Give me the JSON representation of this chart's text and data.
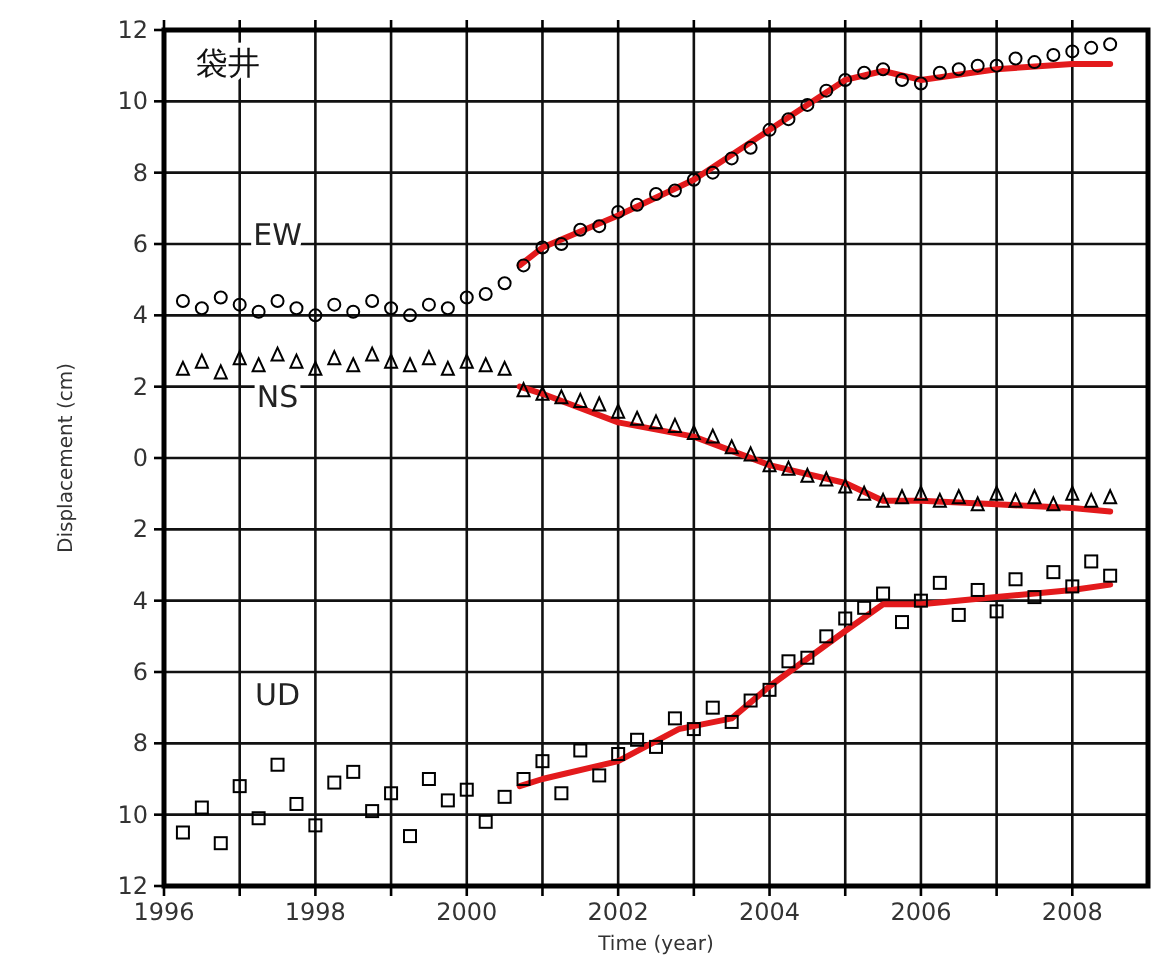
{
  "chart_data": {
    "type": "scatter",
    "title": "袋井",
    "xlabel": "Time (year)",
    "ylabel": "Displacement (cm)",
    "x": [
      1996.25,
      1996.5,
      1996.75,
      1997,
      1997.25,
      1997.5,
      1997.75,
      1998,
      1998.25,
      1998.5,
      1998.75,
      1999,
      1999.25,
      1999.5,
      1999.75,
      2000,
      2000.25,
      2000.5,
      2000.75,
      2001,
      2001.25,
      2001.5,
      2001.75,
      2002,
      2002.25,
      2002.5,
      2002.75,
      2003,
      2003.25,
      2003.5,
      2003.75,
      2004,
      2004.25,
      2004.5,
      2004.75,
      2005,
      2005.25,
      2005.5,
      2005.75,
      2006,
      2006.25,
      2006.5,
      2006.75,
      2007,
      2007.25,
      2007.5,
      2007.75,
      2008,
      2008.25,
      2008.5
    ],
    "series": [
      {
        "name": "EW",
        "color": "#000000",
        "marker": "circle",
        "values": [
          4.4,
          4.2,
          4.5,
          4.3,
          4.1,
          4.4,
          4.2,
          4.0,
          4.3,
          4.1,
          4.4,
          4.2,
          4.0,
          4.3,
          4.2,
          4.5,
          4.6,
          4.9,
          5.4,
          5.9,
          6.0,
          6.4,
          6.5,
          6.9,
          7.1,
          7.4,
          7.5,
          7.8,
          8.0,
          8.4,
          8.7,
          9.2,
          9.5,
          9.9,
          10.3,
          10.6,
          10.8,
          10.9,
          10.6,
          10.5,
          10.8,
          10.9,
          11.0,
          11.0,
          11.2,
          11.1,
          11.3,
          11.4,
          11.5,
          11.6
        ]
      },
      {
        "name": "NS",
        "color": "#000000",
        "marker": "triangle",
        "values": [
          2.5,
          2.7,
          2.4,
          2.8,
          2.6,
          2.9,
          2.7,
          2.5,
          2.8,
          2.6,
          2.9,
          2.7,
          2.6,
          2.8,
          2.5,
          2.7,
          2.6,
          2.5,
          1.9,
          1.8,
          1.7,
          1.6,
          1.5,
          1.3,
          1.1,
          1.0,
          0.9,
          0.7,
          0.6,
          0.3,
          0.1,
          -0.2,
          -0.3,
          -0.5,
          -0.6,
          -0.8,
          -1.0,
          -1.2,
          -1.1,
          -1.0,
          -1.2,
          -1.1,
          -1.3,
          -1.0,
          -1.2,
          -1.1,
          -1.3,
          -1.0,
          -1.2,
          -1.1
        ]
      },
      {
        "name": "UD",
        "color": "#000000",
        "marker": "square",
        "values": [
          -10.5,
          -9.8,
          -10.8,
          -9.2,
          -10.1,
          -8.6,
          -9.7,
          -10.3,
          -9.1,
          -8.8,
          -9.9,
          -9.4,
          -10.6,
          -9.0,
          -9.6,
          -9.3,
          -10.2,
          -9.5,
          -9.0,
          -8.5,
          -9.4,
          -8.2,
          -8.9,
          -8.3,
          -7.9,
          -8.1,
          -7.3,
          -7.6,
          -7.0,
          -7.4,
          -6.8,
          -6.5,
          -5.7,
          -5.6,
          -5.0,
          -4.5,
          -4.2,
          -3.8,
          -4.6,
          -4.0,
          -3.5,
          -4.4,
          -3.7,
          -4.3,
          -3.4,
          -3.9,
          -3.2,
          -3.6,
          -2.9,
          -3.3
        ]
      },
      {
        "type": "line",
        "color": "#e31a1c",
        "marker": "none",
        "x": [
          2000.7,
          2001,
          2002,
          2003,
          2004,
          2005,
          2005.5,
          2006,
          2007,
          2008,
          2008.5
        ],
        "values": [
          5.4,
          5.9,
          6.8,
          7.8,
          9.2,
          10.6,
          10.85,
          10.6,
          10.9,
          11.05,
          11.05
        ]
      },
      {
        "type": "line",
        "color": "#e31a1c",
        "marker": "none",
        "x": [
          2000.7,
          2001,
          2002,
          2003,
          2004,
          2005,
          2005.5,
          2006,
          2007,
          2008,
          2008.5
        ],
        "values": [
          2.0,
          1.8,
          1.0,
          0.6,
          -0.2,
          -0.7,
          -1.2,
          -1.2,
          -1.3,
          -1.4,
          -1.5
        ]
      },
      {
        "type": "line",
        "color": "#e31a1c",
        "marker": "none",
        "x": [
          2000.7,
          2001,
          2002,
          2002.8,
          2003.5,
          2004,
          2005,
          2005.5,
          2006,
          2007,
          2008,
          2008.5
        ],
        "values": [
          -9.2,
          -9.0,
          -8.5,
          -7.6,
          -7.3,
          -6.4,
          -4.85,
          -4.1,
          -4.1,
          -3.9,
          -3.7,
          -3.55
        ]
      }
    ],
    "xlim": [
      1996,
      2009
    ],
    "xticks": [
      1996,
      {
        "value": 1997,
        "label": null
      },
      1998,
      {
        "value": 1999,
        "label": null
      },
      2000,
      {
        "value": 2001,
        "label": null
      },
      2002,
      {
        "value": 2003,
        "label": null
      },
      2004,
      {
        "value": 2005,
        "label": null
      },
      2006,
      {
        "value": 2007,
        "label": null
      },
      2008
    ],
    "ylim": [
      -12,
      12
    ],
    "yticks": [
      {
        "value": -12,
        "label": "12"
      },
      {
        "value": -10,
        "label": "10"
      },
      {
        "value": -8,
        "label": "8"
      },
      {
        "value": -6,
        "label": "6"
      },
      {
        "value": -4,
        "label": "4"
      },
      {
        "value": -2,
        "label": "2"
      },
      0,
      2,
      4,
      6,
      8,
      10,
      12
    ],
    "grid": true
  }
}
